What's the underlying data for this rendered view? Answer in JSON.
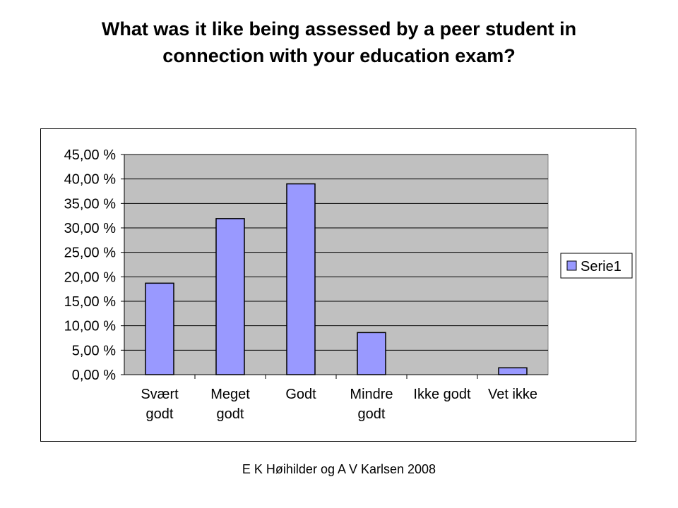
{
  "title": {
    "line1": "What was it like being assessed by a peer student in",
    "line2": "connection with your education exam?"
  },
  "footer": "E K Høihilder og A V Karlsen 2008",
  "colors": {
    "plot_bg": "#c0c0c0",
    "bar_fill": "#9999ff",
    "bar_stroke": "#000000",
    "gridline": "#000000"
  },
  "chart_data": {
    "type": "bar",
    "categories": [
      [
        "Svært",
        "godt"
      ],
      [
        "Meget",
        "godt"
      ],
      [
        "Godt"
      ],
      [
        "Mindre",
        "godt"
      ],
      [
        "Ikke godt"
      ],
      [
        "Vet ikke"
      ]
    ],
    "series": [
      {
        "name": "Serie1",
        "values": [
          18.7,
          31.9,
          39.0,
          8.6,
          0.0,
          1.4
        ]
      }
    ],
    "ylim": [
      0,
      45
    ],
    "ytick_step": 5,
    "ytick_labels": [
      "0,00 %",
      "5,00 %",
      "10,00 %",
      "15,00 %",
      "20,00 %",
      "25,00 %",
      "30,00 %",
      "35,00 %",
      "40,00 %",
      "45,00 %"
    ],
    "grid": true,
    "legend_position": "right"
  }
}
